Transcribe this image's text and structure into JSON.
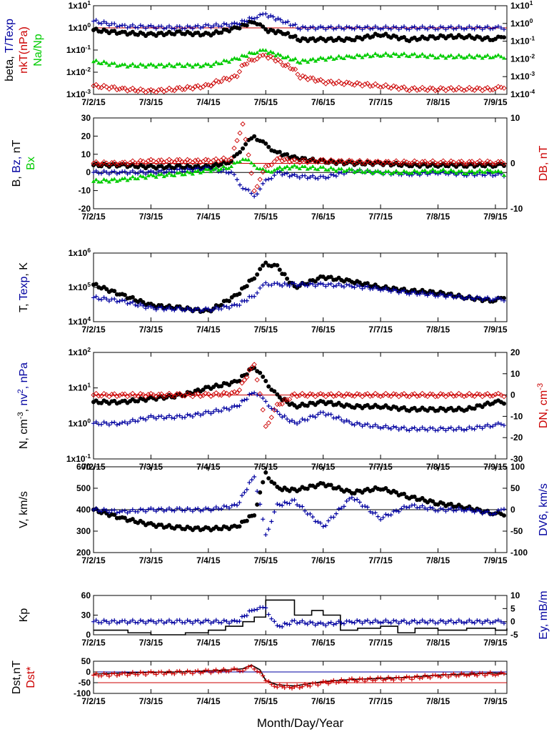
{
  "figure": {
    "x_axis_title": "Month/Day/Year",
    "x_tick_labels": [
      "7/2/15",
      "7/3/15",
      "7/4/15",
      "7/5/15",
      "7/6/15",
      "7/7/15",
      "7/8/15",
      "7/9/15"
    ]
  },
  "colors": {
    "black": "#000000",
    "blue": "#0000a0",
    "red": "#cc0000",
    "green": "#00cc00"
  },
  "chart_data": [
    {
      "type": "scatter",
      "panel": "plasma-beta",
      "ylabel_left": [
        {
          "text": "beta, ",
          "color": "black"
        },
        {
          "text": "T/Texp",
          "color": "blue"
        }
      ],
      "ylabel_left2": [
        {
          "text": "nkT(nPa)",
          "color": "red"
        }
      ],
      "ylabel_left3": [
        {
          "text": "Na/Np",
          "color": "green"
        }
      ],
      "y_scale": "log",
      "ylim": [
        0.001,
        10
      ],
      "y_ticks_left": [
        "1x10-3",
        "1x10-2",
        "1x10-1",
        "1x100",
        "1x101"
      ],
      "y_ticks_right": [
        "1x10-4",
        "1x10-3",
        "1x10-2",
        "1x10-1",
        "1x100",
        "1x101"
      ],
      "reference_lines": [
        {
          "y": 1,
          "color": "red"
        }
      ],
      "series": [
        {
          "marker": "dot",
          "color": "black",
          "x": [
            0,
            0.5,
            1,
            1.5,
            2,
            2.5,
            2.8,
            3,
            3.3,
            3.6,
            4,
            4.5,
            5,
            5.5,
            6,
            6.5,
            7,
            7.2
          ],
          "y": [
            0.8,
            0.6,
            0.5,
            0.6,
            0.5,
            1,
            2,
            0.8,
            0.6,
            0.3,
            0.3,
            0.3,
            0.5,
            0.3,
            0.4,
            0.4,
            0.3,
            0.5
          ]
        },
        {
          "marker": "plus",
          "color": "blue",
          "x": [
            0,
            0.5,
            1,
            1.5,
            2,
            2.5,
            2.8,
            3,
            3.3,
            3.6,
            4,
            4.5,
            5,
            5.5,
            6,
            6.5,
            7,
            7.2
          ],
          "y": [
            2,
            1.2,
            1.1,
            1,
            1.2,
            1.5,
            3,
            4,
            2,
            1,
            1,
            1,
            1,
            1,
            1,
            1,
            1,
            1
          ]
        },
        {
          "marker": "diamond",
          "color": "red",
          "y_axis": "right",
          "x": [
            0,
            0.5,
            1,
            1.5,
            2,
            2.5,
            2.8,
            3,
            3.3,
            3.6,
            4,
            4.5,
            5,
            5.5,
            6,
            6.5,
            7,
            7.2
          ],
          "y": [
            0.0003,
            0.0002,
            0.00015,
            0.0002,
            0.0003,
            0.001,
            0.01,
            0.015,
            0.005,
            0.001,
            0.0005,
            0.0004,
            0.0003,
            0.0002,
            0.0002,
            0.0002,
            0.0002,
            0.0003
          ]
        },
        {
          "marker": "triangle",
          "color": "green",
          "x": [
            0,
            0.5,
            1,
            1.5,
            2,
            2.5,
            2.8,
            3,
            3.3,
            3.6,
            4,
            4.5,
            5,
            5.5,
            6,
            6.5,
            7,
            7.2
          ],
          "y": [
            0.03,
            0.02,
            0.02,
            0.02,
            0.02,
            0.04,
            0.08,
            0.09,
            0.05,
            0.03,
            0.04,
            0.05,
            0.06,
            0.06,
            0.05,
            0.05,
            0.05,
            0.05
          ]
        }
      ]
    },
    {
      "type": "scatter",
      "panel": "magnetic-field",
      "ylabel_left": [
        {
          "text": "B, ",
          "color": "black"
        },
        {
          "text": "Bz, ",
          "color": "blue"
        },
        {
          "text": "nT",
          "color": "black"
        }
      ],
      "ylabel_left2": [
        {
          "text": "Bx",
          "color": "green"
        }
      ],
      "ylabel_right": [
        {
          "text": "DB, nT",
          "color": "red"
        }
      ],
      "ylim": [
        -20,
        30
      ],
      "y_ticks_left": [
        "-20",
        "-10",
        "0",
        "10",
        "20",
        "30"
      ],
      "y_ticks_right": [
        "-10",
        "0",
        "10"
      ],
      "reference_lines": [
        {
          "y": 5,
          "color": "red"
        },
        {
          "y": 0,
          "color": "black"
        }
      ],
      "series": [
        {
          "marker": "dot",
          "color": "black",
          "x": [
            0,
            0.5,
            1,
            1.5,
            2,
            2.4,
            2.6,
            2.8,
            3,
            3.2,
            3.5,
            4,
            4.5,
            5,
            5.5,
            6,
            6.5,
            7,
            7.2
          ],
          "y": [
            4,
            4,
            3,
            3,
            3,
            6,
            14,
            20,
            15,
            11,
            8,
            6,
            5,
            5,
            4,
            4,
            4,
            4,
            4
          ]
        },
        {
          "marker": "plus",
          "color": "blue",
          "x": [
            0,
            0.5,
            1,
            1.5,
            2,
            2.4,
            2.6,
            2.8,
            3,
            3.2,
            3.5,
            4,
            4.5,
            5,
            5.5,
            6,
            6.5,
            7,
            7.2
          ],
          "y": [
            0,
            0,
            0,
            1,
            2,
            0,
            -8,
            -13,
            -5,
            0,
            -2,
            -3,
            1,
            0,
            -1,
            0,
            -1,
            -1,
            -2
          ]
        },
        {
          "marker": "triangle",
          "color": "green",
          "x": [
            0,
            0.5,
            1,
            1.5,
            2,
            2.4,
            2.6,
            2.8,
            3,
            3.2,
            3.5,
            4,
            4.5,
            5,
            5.5,
            6,
            6.5,
            7,
            7.2
          ],
          "y": [
            -5,
            -4,
            -2,
            -1,
            1,
            3,
            8,
            4,
            0,
            2,
            3,
            2,
            1,
            0,
            0,
            1,
            0,
            1,
            -2
          ]
        },
        {
          "marker": "diamond",
          "color": "red",
          "y_axis": "right",
          "x": [
            0,
            0.5,
            1,
            1.5,
            2,
            2.4,
            2.6,
            2.8,
            3,
            3.2,
            3.5,
            4,
            4.5,
            5,
            5.5,
            6,
            6.5,
            7,
            7.2
          ],
          "y": [
            0,
            0,
            0.5,
            0.5,
            0.5,
            1,
            9,
            -6,
            -1,
            1,
            0.5,
            0.5,
            0.3,
            0.2,
            0.2,
            0.2,
            0.2,
            0.2,
            0
          ]
        }
      ]
    },
    {
      "type": "scatter",
      "panel": "temperature",
      "ylabel_left": [
        {
          "text": "T, ",
          "color": "black"
        },
        {
          "text": "Texp",
          "color": "blue"
        },
        {
          "text": ", K",
          "color": "black"
        }
      ],
      "y_scale": "log",
      "ylim": [
        10000,
        1000000
      ],
      "y_ticks_left": [
        "1x104",
        "1x105",
        "1x106"
      ],
      "series": [
        {
          "marker": "dot",
          "color": "black",
          "x": [
            0,
            0.5,
            1,
            1.5,
            2,
            2.5,
            2.8,
            3,
            3.2,
            3.5,
            4,
            4.5,
            5,
            5.5,
            6,
            6.5,
            7,
            7.2
          ],
          "y": [
            120000,
            60000,
            30000,
            25000,
            20000,
            60000,
            200000,
            500000,
            400000,
            100000,
            200000,
            150000,
            100000,
            80000,
            70000,
            50000,
            40000,
            60000
          ]
        },
        {
          "marker": "plus",
          "color": "blue",
          "x": [
            0,
            0.5,
            1,
            1.5,
            2,
            2.5,
            2.8,
            3,
            3.2,
            3.5,
            4,
            4.5,
            5,
            5.5,
            6,
            6.5,
            7,
            7.2
          ],
          "y": [
            50000,
            40000,
            25000,
            23000,
            22000,
            30000,
            60000,
            130000,
            120000,
            120000,
            120000,
            110000,
            90000,
            70000,
            60000,
            50000,
            45000,
            45000
          ]
        }
      ]
    },
    {
      "type": "scatter",
      "panel": "density",
      "ylabel_left": [
        {
          "text": "N, cm-3, ",
          "color": "black"
        },
        {
          "text": "nv2, nPa",
          "color": "blue"
        }
      ],
      "ylabel_right": [
        {
          "text": "DN, cm-3",
          "color": "red"
        }
      ],
      "y_scale": "log",
      "ylim": [
        0.1,
        100
      ],
      "y_ticks_left": [
        "1x10-1",
        "1x100",
        "1x101",
        "1x102"
      ],
      "y_ticks_right": [
        "-30",
        "-20",
        "-10",
        "0",
        "10",
        "20"
      ],
      "reference_lines": [
        {
          "y_right": 0,
          "color": "red"
        }
      ],
      "series": [
        {
          "marker": "dot",
          "color": "black",
          "x": [
            0,
            0.5,
            1,
            1.5,
            2,
            2.5,
            2.8,
            3,
            3.2,
            3.5,
            4,
            4.5,
            5,
            5.5,
            6,
            6.5,
            7,
            7.2
          ],
          "y": [
            4,
            4,
            5,
            6,
            10,
            15,
            40,
            15,
            6,
            3,
            4,
            3,
            3,
            2.5,
            2.5,
            2.5,
            4,
            4
          ]
        },
        {
          "marker": "plus",
          "color": "blue",
          "x": [
            0,
            0.5,
            1,
            1.5,
            2,
            2.5,
            2.8,
            3,
            3.2,
            3.5,
            4,
            4.5,
            5,
            5.5,
            6,
            6.5,
            7,
            7.2
          ],
          "y": [
            1,
            1,
            1.5,
            1.5,
            2,
            3,
            8,
            4,
            2,
            1,
            2,
            1,
            0.8,
            0.7,
            0.7,
            0.7,
            0.9,
            1
          ]
        },
        {
          "marker": "diamond",
          "color": "red",
          "y_axis": "right",
          "x": [
            0,
            0.5,
            1,
            1.5,
            2,
            2.5,
            2.8,
            3,
            3.2,
            3.5,
            4,
            4.5,
            5,
            5.5,
            6,
            6.5,
            7,
            7.2
          ],
          "y": [
            0,
            0,
            0,
            0,
            0,
            1,
            15,
            -15,
            -5,
            0,
            0,
            0,
            0,
            0,
            0,
            0,
            0,
            0
          ]
        }
      ]
    },
    {
      "type": "scatter",
      "panel": "velocity",
      "ylabel_left": [
        {
          "text": "V, km/s",
          "color": "black"
        }
      ],
      "ylabel_right": [
        {
          "text": "DV6, km/s",
          "color": "blue"
        }
      ],
      "ylim": [
        200,
        600
      ],
      "y_ticks_left": [
        "200",
        "300",
        "400",
        "500",
        "600"
      ],
      "y_ticks_right": [
        "-100",
        "-50",
        "0",
        "50",
        "100"
      ],
      "reference_lines": [
        {
          "y": 400,
          "color": "black"
        }
      ],
      "series": [
        {
          "marker": "dot",
          "color": "black",
          "x": [
            0,
            0.5,
            1,
            1.5,
            2,
            2.5,
            2.8,
            3,
            3.2,
            3.5,
            4,
            4.5,
            5,
            5.5,
            6,
            6.5,
            7,
            7.2
          ],
          "y": [
            400,
            360,
            330,
            315,
            310,
            320,
            380,
            570,
            500,
            490,
            520,
            480,
            500,
            460,
            430,
            410,
            380,
            380
          ]
        },
        {
          "marker": "plus",
          "color": "blue",
          "y_axis": "right",
          "x": [
            0,
            0.5,
            1,
            1.5,
            2,
            2.5,
            2.8,
            3,
            3.2,
            3.5,
            4,
            4.5,
            5,
            5.5,
            6,
            6.5,
            7,
            7.2
          ],
          "y": [
            0,
            -5,
            0,
            0,
            0,
            10,
            80,
            -60,
            10,
            20,
            -40,
            30,
            -20,
            10,
            0,
            0,
            -10,
            10
          ]
        }
      ]
    },
    {
      "type": "line",
      "panel": "kp-ey",
      "ylabel_left": [
        {
          "text": "Kp",
          "color": "black"
        }
      ],
      "ylabel_right": [
        {
          "text": "Ey, mB/m",
          "color": "blue"
        }
      ],
      "ylim": [
        0,
        60
      ],
      "y_ticks_left": [
        "0",
        "30",
        "60"
      ],
      "y_ticks_right": [
        "-5",
        "0",
        "5",
        "10"
      ],
      "series": [
        {
          "marker": "line",
          "color": "black",
          "step": true,
          "x": [
            0,
            0.6,
            1,
            1.6,
            2,
            2.3,
            2.6,
            2.8,
            3,
            3.3,
            3.5,
            3.8,
            4,
            4.3,
            4.6,
            5,
            5.3,
            5.6,
            6,
            6.5,
            7,
            7.2
          ],
          "y": [
            7,
            3,
            0,
            3,
            7,
            13,
            20,
            27,
            53,
            53,
            30,
            37,
            30,
            7,
            10,
            13,
            3,
            10,
            7,
            10,
            7,
            10
          ]
        },
        {
          "marker": "plus",
          "color": "blue",
          "y_axis": "right",
          "x": [
            0,
            0.5,
            1,
            1.5,
            2,
            2.5,
            2.8,
            3,
            3.2,
            3.5,
            4,
            4.5,
            5,
            5.5,
            6,
            6.5,
            7,
            7.2
          ],
          "y": [
            0,
            0,
            0,
            0,
            0,
            0,
            5,
            5,
            -2,
            0,
            -1,
            0,
            0,
            0,
            0,
            0,
            0,
            0
          ]
        }
      ]
    },
    {
      "type": "line",
      "panel": "dst",
      "ylabel_left": [
        {
          "text": "Dst,nT",
          "color": "black"
        }
      ],
      "ylabel_left2": [
        {
          "text": "Dst*",
          "color": "red"
        }
      ],
      "ylim": [
        -100,
        50
      ],
      "y_ticks_left": [
        "-100",
        "-50",
        "0",
        "50"
      ],
      "reference_lines": [
        {
          "y": 0,
          "color": "blue"
        },
        {
          "y": -50,
          "color": "red"
        }
      ],
      "series": [
        {
          "marker": "line",
          "color": "black",
          "x": [
            0,
            0.5,
            1,
            1.5,
            2,
            2.4,
            2.6,
            2.75,
            2.9,
            3,
            3.2,
            3.5,
            4,
            4.5,
            5,
            5.5,
            6,
            6.5,
            7,
            7.2
          ],
          "y": [
            -10,
            -5,
            -2,
            0,
            5,
            10,
            15,
            32,
            10,
            -40,
            -60,
            -65,
            -45,
            -35,
            -30,
            -25,
            -15,
            -10,
            -5,
            -10
          ]
        },
        {
          "marker": "plus",
          "color": "red",
          "x": [
            0,
            0.5,
            1,
            1.5,
            2,
            2.4,
            2.6,
            2.75,
            2.9,
            3,
            3.2,
            3.5,
            4,
            4.5,
            5,
            5.5,
            6,
            6.5,
            7,
            7.2
          ],
          "y": [
            -15,
            -10,
            -5,
            -3,
            2,
            8,
            12,
            20,
            5,
            -45,
            -65,
            -72,
            -50,
            -38,
            -33,
            -28,
            -18,
            -12,
            -8,
            -13
          ]
        }
      ]
    }
  ]
}
